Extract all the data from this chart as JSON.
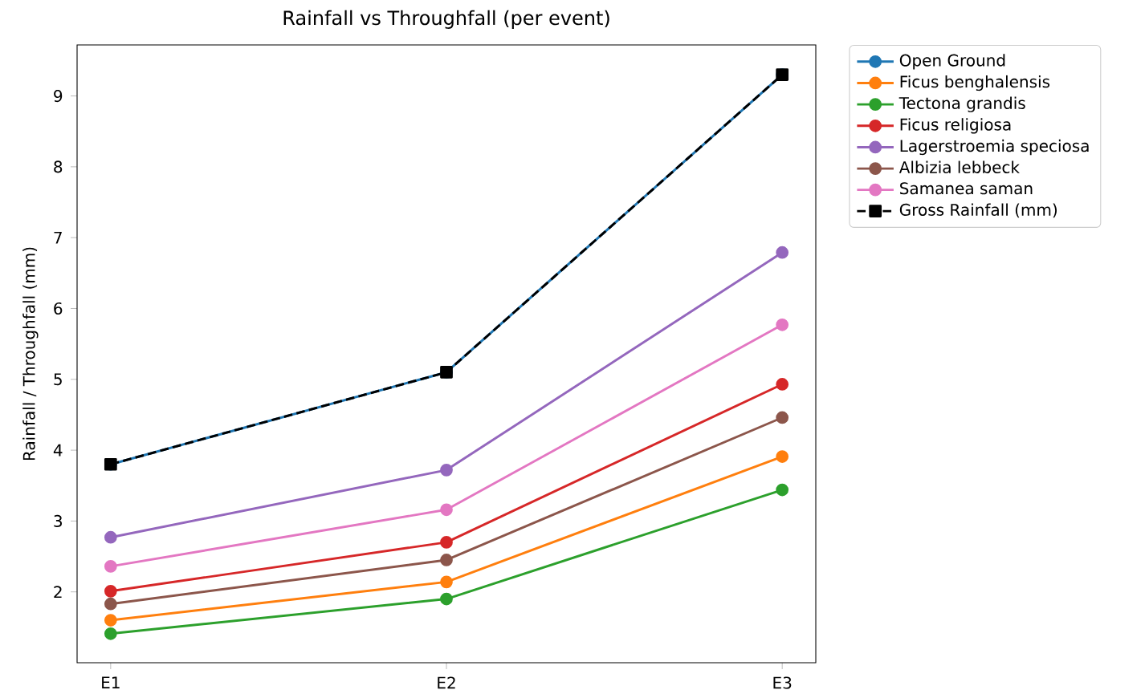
{
  "chart_data": {
    "type": "line",
    "title": "Rainfall vs Throughfall (per event)",
    "ylabel": "Rainfall / Throughfall (mm)",
    "categories": [
      "E1",
      "E2",
      "E3"
    ],
    "series": [
      {
        "name": "Open Ground",
        "color": "#1f77b4",
        "values": [
          3.8,
          5.1,
          9.3
        ]
      },
      {
        "name": "Ficus benghalensis",
        "color": "#ff7f0e",
        "values": [
          1.6,
          2.14,
          3.91
        ]
      },
      {
        "name": "Tectona grandis",
        "color": "#2ca02c",
        "values": [
          1.41,
          1.9,
          3.44
        ]
      },
      {
        "name": "Ficus religiosa",
        "color": "#d62728",
        "values": [
          2.01,
          2.7,
          4.93
        ]
      },
      {
        "name": "Lagerstroemia speciosa",
        "color": "#9467bd",
        "values": [
          2.77,
          3.72,
          6.79
        ]
      },
      {
        "name": "Albizia lebbeck",
        "color": "#8c564b",
        "values": [
          1.83,
          2.45,
          4.46
        ]
      },
      {
        "name": "Samanea saman",
        "color": "#e377c2",
        "values": [
          2.36,
          3.16,
          5.77
        ]
      },
      {
        "name": "Gross Rainfall (mm)",
        "color": "#000000",
        "values": [
          3.8,
          5.1,
          9.3
        ],
        "marker": "square",
        "line_style": "dashed"
      }
    ],
    "ylim": [
      1.0,
      9.72
    ],
    "yticks": [
      2,
      3,
      4,
      5,
      6,
      7,
      8,
      9
    ],
    "marker": "circle",
    "line_style": "solid",
    "legend": "right",
    "grid": false
  }
}
